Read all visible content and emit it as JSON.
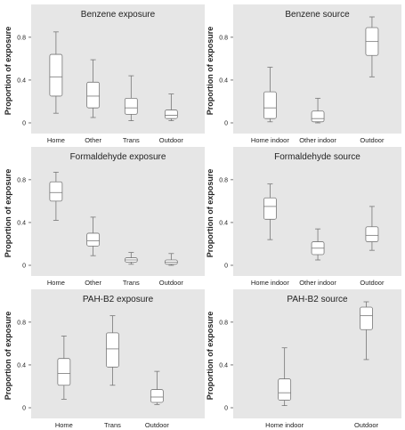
{
  "chart_data": [
    {
      "type": "boxplot",
      "title": "Benzene exposure",
      "ylabel": "Proportion of exposure",
      "ylim": [
        0,
        1
      ],
      "yticks": [
        "0",
        "0.4",
        "0.8"
      ],
      "categories": [
        "Home",
        "Other",
        "Trans",
        "Outdoor"
      ],
      "boxes": [
        {
          "min": 0.09,
          "q1": 0.25,
          "median": 0.43,
          "q3": 0.64,
          "max": 0.85
        },
        {
          "min": 0.05,
          "q1": 0.14,
          "median": 0.25,
          "q3": 0.38,
          "max": 0.59
        },
        {
          "min": 0.02,
          "q1": 0.08,
          "median": 0.14,
          "q3": 0.23,
          "max": 0.44
        },
        {
          "min": 0.02,
          "q1": 0.04,
          "median": 0.07,
          "q3": 0.12,
          "max": 0.27
        }
      ]
    },
    {
      "type": "boxplot",
      "title": "Benzene source",
      "ylabel": "Proportion of exposure",
      "ylim": [
        0,
        1
      ],
      "yticks": [
        "0",
        "0.4",
        "0.8"
      ],
      "categories": [
        "Home indoor",
        "Other indoor",
        "Outdoor"
      ],
      "boxes": [
        {
          "min": 0.01,
          "q1": 0.04,
          "median": 0.14,
          "q3": 0.29,
          "max": 0.52
        },
        {
          "min": 0.0,
          "q1": 0.01,
          "median": 0.04,
          "q3": 0.11,
          "max": 0.23
        },
        {
          "min": 0.43,
          "q1": 0.63,
          "median": 0.76,
          "q3": 0.89,
          "max": 0.99
        }
      ]
    },
    {
      "type": "boxplot",
      "title": "Formaldehyde exposure",
      "ylabel": "Proportion of exposure",
      "ylim": [
        0,
        1
      ],
      "yticks": [
        "0",
        "0.4",
        "0.8"
      ],
      "categories": [
        "Home",
        "Other",
        "Trans",
        "Outdoor"
      ],
      "boxes": [
        {
          "min": 0.42,
          "q1": 0.6,
          "median": 0.68,
          "q3": 0.78,
          "max": 0.87
        },
        {
          "min": 0.09,
          "q1": 0.18,
          "median": 0.23,
          "q3": 0.3,
          "max": 0.45
        },
        {
          "min": 0.01,
          "q1": 0.03,
          "median": 0.05,
          "q3": 0.07,
          "max": 0.12
        },
        {
          "min": 0.0,
          "q1": 0.01,
          "median": 0.03,
          "q3": 0.05,
          "max": 0.11
        }
      ]
    },
    {
      "type": "boxplot",
      "title": "Formaldehyde source",
      "ylabel": "Proportion of exposure",
      "ylim": [
        0,
        1
      ],
      "yticks": [
        "0",
        "0.4",
        "0.8"
      ],
      "categories": [
        "Home indoor",
        "Other indoor",
        "Outdoor"
      ],
      "boxes": [
        {
          "min": 0.24,
          "q1": 0.43,
          "median": 0.55,
          "q3": 0.63,
          "max": 0.76
        },
        {
          "min": 0.05,
          "q1": 0.1,
          "median": 0.16,
          "q3": 0.22,
          "max": 0.34
        },
        {
          "min": 0.14,
          "q1": 0.22,
          "median": 0.28,
          "q3": 0.36,
          "max": 0.55
        }
      ]
    },
    {
      "type": "boxplot",
      "title": "PAH-B2 exposure",
      "ylabel": "Proportion of exposure",
      "ylim": [
        0,
        1
      ],
      "yticks": [
        "0",
        "0.4",
        "0.8"
      ],
      "categories": [
        "Home",
        "Trans",
        "Outdoor"
      ],
      "boxes": [
        {
          "min": 0.08,
          "q1": 0.21,
          "median": 0.32,
          "q3": 0.46,
          "max": 0.67
        },
        {
          "min": 0.21,
          "q1": 0.38,
          "median": 0.55,
          "q3": 0.7,
          "max": 0.86
        },
        {
          "min": 0.03,
          "q1": 0.05,
          "median": 0.1,
          "q3": 0.17,
          "max": 0.34
        }
      ]
    },
    {
      "type": "boxplot",
      "title": "PAH-B2 source",
      "ylabel": "Proportion of exposure",
      "ylim": [
        0,
        1
      ],
      "yticks": [
        "0",
        "0.4",
        "0.8"
      ],
      "categories": [
        "Home indoor",
        "Outdoor"
      ],
      "boxes": [
        {
          "min": 0.02,
          "q1": 0.07,
          "median": 0.14,
          "q3": 0.27,
          "max": 0.56
        },
        {
          "min": 0.45,
          "q1": 0.73,
          "median": 0.86,
          "q3": 0.94,
          "max": 0.99
        }
      ]
    }
  ]
}
